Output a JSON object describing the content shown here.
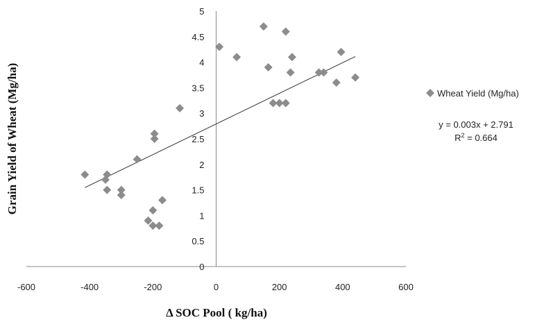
{
  "chart_data": {
    "type": "scatter",
    "title": "",
    "xlabel": "Δ SOC Pool ( kg/ha)",
    "ylabel": "Grain Yield of Wheat (Mg/ha)",
    "xlim": [
      -600,
      600
    ],
    "ylim": [
      0,
      5
    ],
    "x_ticks": [
      "-600",
      "-400",
      "-200",
      "0",
      "200",
      "400",
      "600"
    ],
    "y_ticks": [
      "0",
      "0.5",
      "1",
      "1.5",
      "2",
      "2.5",
      "3",
      "3.5",
      "4",
      "4.5",
      "5"
    ],
    "grid": false,
    "legend_position": "right",
    "series": [
      {
        "name": "Wheat Yield (Mg/ha)",
        "color": "#8c8c8c",
        "marker": "diamond",
        "points": [
          [
            -415,
            1.8
          ],
          [
            -350,
            1.7
          ],
          [
            -345,
            1.8
          ],
          [
            -345,
            1.5
          ],
          [
            -300,
            1.5
          ],
          [
            -300,
            1.4
          ],
          [
            -250,
            2.1
          ],
          [
            -215,
            0.9
          ],
          [
            -200,
            0.8
          ],
          [
            -200,
            1.1
          ],
          [
            -195,
            2.5
          ],
          [
            -195,
            2.6
          ],
          [
            -180,
            0.8
          ],
          [
            -170,
            1.3
          ],
          [
            -115,
            3.1
          ],
          [
            10,
            4.3
          ],
          [
            65,
            4.1
          ],
          [
            150,
            4.7
          ],
          [
            165,
            3.9
          ],
          [
            180,
            3.2
          ],
          [
            200,
            3.2
          ],
          [
            220,
            3.2
          ],
          [
            220,
            4.6
          ],
          [
            235,
            3.8
          ],
          [
            240,
            4.1
          ],
          [
            325,
            3.8
          ],
          [
            340,
            3.8
          ],
          [
            380,
            3.6
          ],
          [
            395,
            4.2
          ],
          [
            440,
            3.7
          ]
        ]
      }
    ],
    "trendline": {
      "type": "linear",
      "slope": 0.003,
      "intercept": 2.791,
      "x_range": [
        -415,
        440
      ],
      "color": "#333333"
    },
    "annotations": {
      "equation": "y = 0.003x + 2.791",
      "r2_prefix": "R",
      "r2_exp": "2",
      "r2_rest": " = 0.664"
    }
  }
}
